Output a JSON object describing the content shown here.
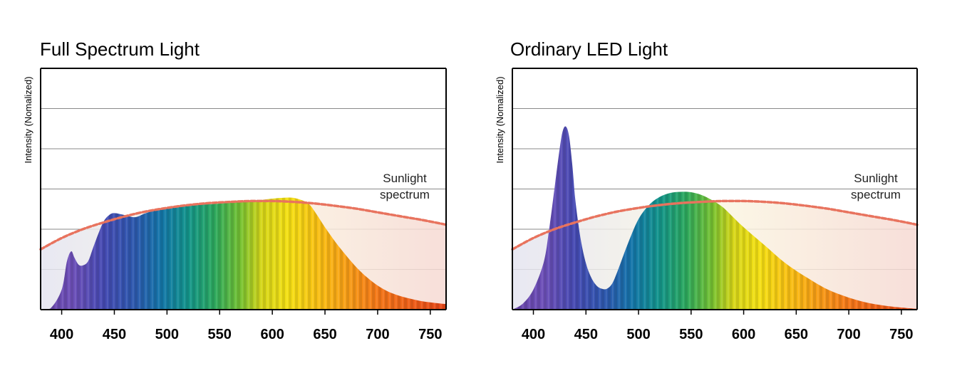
{
  "chart_data": [
    {
      "type": "area",
      "title": "Full Spectrum Light",
      "xlabel": "",
      "ylabel": "Intensity (Nomalized)",
      "xticks": [
        400,
        450,
        500,
        550,
        600,
        650,
        700,
        750
      ],
      "xlim": [
        380,
        765
      ],
      "ylim": [
        0,
        6
      ],
      "grid": true,
      "annotation": [
        "Sunlight",
        "spectrum"
      ],
      "series": [
        {
          "style": "filled-area-spectral",
          "x": [
            380,
            390,
            400,
            405,
            409,
            412,
            416,
            420,
            425,
            430,
            435,
            440,
            445,
            450,
            460,
            470,
            480,
            500,
            520,
            540,
            560,
            580,
            600,
            610,
            620,
            630,
            635,
            640,
            650,
            660,
            670,
            680,
            690,
            700,
            710,
            720,
            730,
            740,
            750,
            760,
            765
          ],
          "y": [
            0.0,
            0.05,
            0.5,
            1.2,
            1.45,
            1.3,
            1.12,
            1.1,
            1.2,
            1.55,
            1.9,
            2.2,
            2.35,
            2.4,
            2.35,
            2.3,
            2.4,
            2.55,
            2.6,
            2.62,
            2.66,
            2.7,
            2.76,
            2.78,
            2.78,
            2.7,
            2.62,
            2.45,
            2.05,
            1.68,
            1.35,
            1.05,
            0.8,
            0.6,
            0.45,
            0.35,
            0.28,
            0.22,
            0.18,
            0.15,
            0.14
          ]
        },
        {
          "name": "Sunlight spectrum",
          "style": "dashed-curve",
          "x": [
            380,
            400,
            420,
            440,
            460,
            480,
            500,
            520,
            540,
            560,
            580,
            600,
            620,
            640,
            660,
            680,
            700,
            720,
            740,
            760,
            765
          ],
          "y": [
            1.5,
            1.78,
            2.0,
            2.17,
            2.32,
            2.44,
            2.53,
            2.6,
            2.65,
            2.68,
            2.7,
            2.7,
            2.68,
            2.64,
            2.58,
            2.51,
            2.42,
            2.33,
            2.24,
            2.14,
            2.11
          ]
        }
      ]
    },
    {
      "type": "area",
      "title": "Ordinary LED Light",
      "xlabel": "",
      "ylabel": "Intensity (Nomalized)",
      "xticks": [
        400,
        450,
        500,
        550,
        600,
        650,
        700,
        750
      ],
      "xlim": [
        380,
        765
      ],
      "ylim": [
        0,
        6
      ],
      "grid": true,
      "annotation": [
        "Sunlight",
        "spectrum"
      ],
      "series": [
        {
          "style": "filled-area-spectral",
          "x": [
            380,
            390,
            400,
            410,
            415,
            420,
            425,
            428,
            431,
            434,
            437,
            440,
            445,
            450,
            455,
            460,
            465,
            470,
            475,
            480,
            490,
            500,
            510,
            520,
            530,
            540,
            550,
            560,
            570,
            580,
            590,
            600,
            620,
            640,
            660,
            680,
            700,
            720,
            740,
            760,
            765
          ],
          "y": [
            0.0,
            0.15,
            0.5,
            1.2,
            2.0,
            3.0,
            4.0,
            4.45,
            4.55,
            4.3,
            3.6,
            2.7,
            1.75,
            1.15,
            0.8,
            0.6,
            0.52,
            0.52,
            0.65,
            0.95,
            1.65,
            2.25,
            2.6,
            2.8,
            2.9,
            2.93,
            2.92,
            2.85,
            2.72,
            2.55,
            2.3,
            2.05,
            1.6,
            1.15,
            0.8,
            0.5,
            0.3,
            0.16,
            0.08,
            0.03,
            0.02
          ]
        },
        {
          "name": "Sunlight spectrum",
          "style": "dashed-curve",
          "x": [
            380,
            400,
            420,
            440,
            460,
            480,
            500,
            520,
            540,
            560,
            580,
            600,
            620,
            640,
            660,
            680,
            700,
            720,
            740,
            760,
            765
          ],
          "y": [
            1.5,
            1.78,
            2.0,
            2.17,
            2.32,
            2.44,
            2.53,
            2.6,
            2.65,
            2.68,
            2.7,
            2.7,
            2.68,
            2.64,
            2.58,
            2.51,
            2.42,
            2.33,
            2.24,
            2.14,
            2.11
          ]
        }
      ]
    }
  ],
  "colors": {
    "sunlight_curve": "#e8735e",
    "frame": "#000000",
    "grid": "#8a8a8a",
    "sun_fill_left": "#e4e4f0",
    "sun_fill_mid": "#fbf7e2",
    "sun_fill_right": "#f6d9d3"
  }
}
